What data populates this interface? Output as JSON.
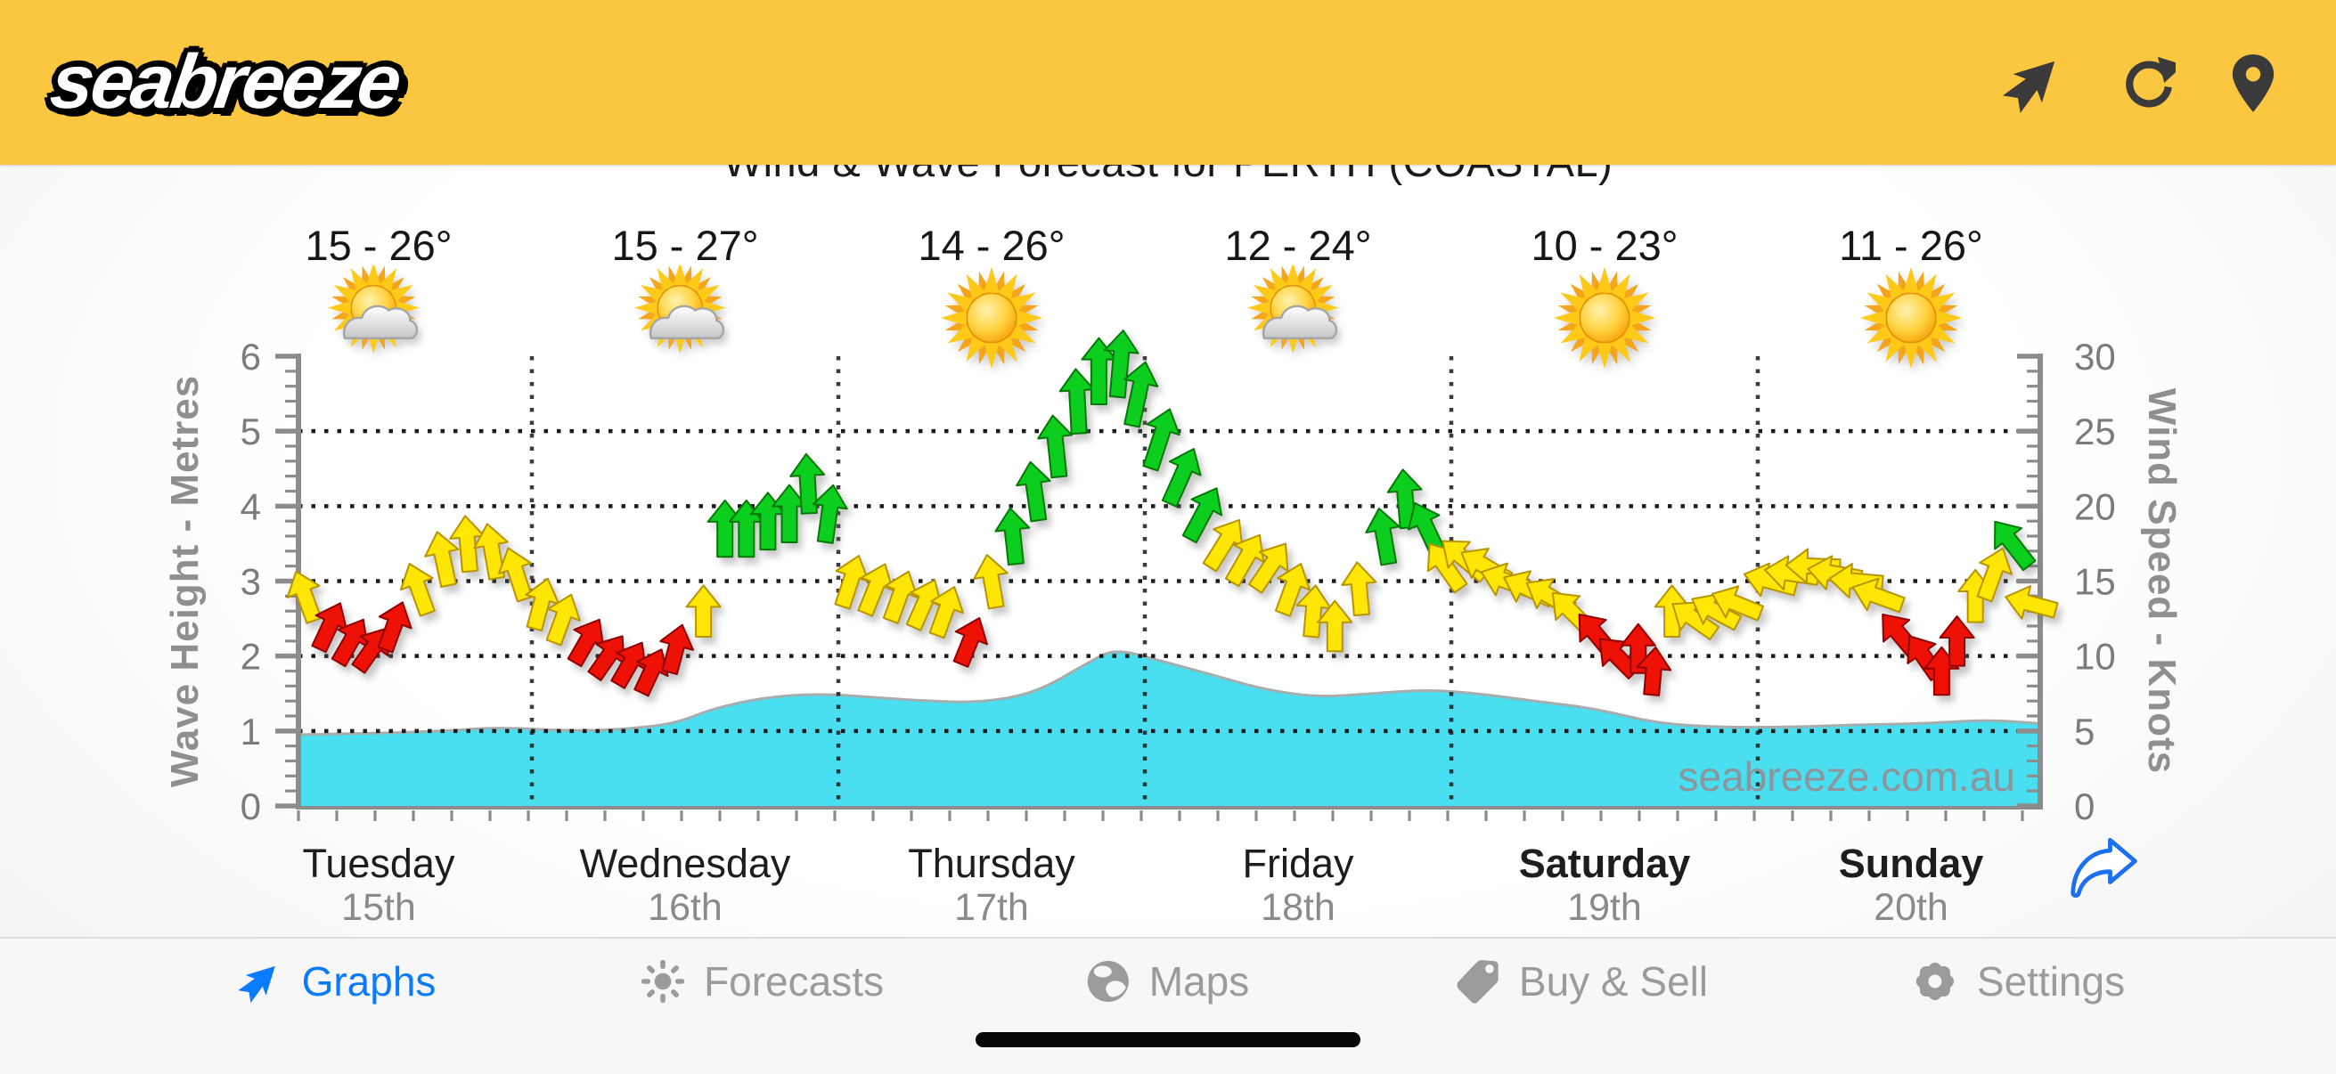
{
  "header": {
    "logo_text": "seabreeze",
    "background": "#FCC740",
    "icons": [
      "wind-direction-icon",
      "refresh-icon",
      "location-pin-icon"
    ]
  },
  "title": "Wind & Wave Forecast for PERTH (COASTAL)",
  "days": [
    {
      "name": "Tuesday",
      "date": "15th",
      "temp": "15 - 26°",
      "weather": "partly-cloudy",
      "bold": false
    },
    {
      "name": "Wednesday",
      "date": "16th",
      "temp": "15 - 27°",
      "weather": "partly-cloudy",
      "bold": false
    },
    {
      "name": "Thursday",
      "date": "17th",
      "temp": "14 - 26°",
      "weather": "sunny",
      "bold": false
    },
    {
      "name": "Friday",
      "date": "18th",
      "temp": "12 - 24°",
      "weather": "partly-cloudy",
      "bold": false
    },
    {
      "name": "Saturday",
      "date": "19th",
      "temp": "10 - 23°",
      "weather": "sunny",
      "bold": true
    },
    {
      "name": "Sunday",
      "date": "20th",
      "temp": "11 - 26°",
      "weather": "sunny",
      "bold": true
    }
  ],
  "chart_data": {
    "type": "wind-wave-forecast",
    "title": "Wind & Wave Forecast for PERTH (COASTAL)",
    "watermark": "seabreeze.com.au",
    "left_axis": {
      "label": "Wave Height - Metres",
      "min": 0,
      "max": 6,
      "major_ticks": [
        0,
        1,
        2,
        3,
        4,
        5,
        6
      ]
    },
    "right_axis": {
      "label": "Wind Speed - Knots",
      "min": 0,
      "max": 30,
      "major_ticks": [
        0,
        5,
        10,
        15,
        20,
        25,
        30
      ]
    },
    "x_categories": [
      "Tuesday 15th",
      "Wednesday 16th",
      "Thursday 17th",
      "Friday 18th",
      "Saturday 19th",
      "Sunday 20th"
    ],
    "grid": "dotted, horizontal every 1 m / 5 kn, vertical at day boundaries",
    "colors": {
      "wave": "#4ADEF1",
      "arrow_red": "#EE1106",
      "arrow_yellow": "#FFE604",
      "arrow_green": "#0BCE1E",
      "grid": "#1B1B1B",
      "axis": "#8C8C8C"
    },
    "wave_series": {
      "name": "Wave Height (metres)",
      "points_day_metres": [
        [
          0.24,
          0.95
        ],
        [
          0.49,
          0.97
        ],
        [
          0.72,
          1.0
        ],
        [
          0.89,
          1.05
        ],
        [
          1.13,
          1.0
        ],
        [
          1.3,
          1.02
        ],
        [
          1.47,
          1.1
        ],
        [
          1.59,
          1.3
        ],
        [
          1.76,
          1.45
        ],
        [
          1.94,
          1.5
        ],
        [
          2.11,
          1.45
        ],
        [
          2.29,
          1.4
        ],
        [
          2.46,
          1.38
        ],
        [
          2.64,
          1.5
        ],
        [
          2.81,
          1.9
        ],
        [
          2.9,
          2.1
        ],
        [
          3.04,
          1.95
        ],
        [
          3.22,
          1.75
        ],
        [
          3.39,
          1.55
        ],
        [
          3.57,
          1.45
        ],
        [
          3.74,
          1.5
        ],
        [
          3.92,
          1.55
        ],
        [
          4.09,
          1.5
        ],
        [
          4.27,
          1.4
        ],
        [
          4.47,
          1.3
        ],
        [
          4.67,
          1.1
        ],
        [
          4.88,
          1.05
        ],
        [
          5.08,
          1.05
        ],
        [
          5.31,
          1.08
        ],
        [
          5.55,
          1.1
        ],
        [
          5.75,
          1.15
        ],
        [
          5.92,
          1.1
        ]
      ]
    },
    "wind_series": {
      "name": "Wind Speed (knots)",
      "point_format": "[day_position, knots, arrow_rotation_deg (0=up, clockwise), color r|y|g]",
      "points": [
        [
          0.26,
          14,
          -20,
          "y"
        ],
        [
          0.34,
          12,
          25,
          "r"
        ],
        [
          0.41,
          11,
          30,
          "r"
        ],
        [
          0.48,
          10.5,
          35,
          "r"
        ],
        [
          0.55,
          12,
          20,
          "r"
        ],
        [
          0.63,
          14.5,
          -20,
          "y"
        ],
        [
          0.71,
          16.5,
          -12,
          "y"
        ],
        [
          0.79,
          17.5,
          -5,
          "y"
        ],
        [
          0.87,
          17,
          -10,
          "y"
        ],
        [
          0.95,
          15.5,
          -18,
          "y"
        ],
        [
          1.03,
          13.5,
          15,
          "y"
        ],
        [
          1.1,
          12.5,
          20,
          "y"
        ],
        [
          1.18,
          11,
          30,
          "r"
        ],
        [
          1.25,
          10,
          35,
          "r"
        ],
        [
          1.32,
          9.5,
          30,
          "r"
        ],
        [
          1.39,
          9,
          25,
          "r"
        ],
        [
          1.47,
          10.5,
          15,
          "r"
        ],
        [
          1.56,
          13,
          0,
          "y"
        ],
        [
          1.63,
          18.5,
          0,
          "g"
        ],
        [
          1.7,
          18.5,
          0,
          "g"
        ],
        [
          1.77,
          19,
          0,
          "g"
        ],
        [
          1.84,
          19.5,
          0,
          "g"
        ],
        [
          1.9,
          21.5,
          -3,
          "g"
        ],
        [
          1.97,
          19.5,
          8,
          "g"
        ],
        [
          2.04,
          15,
          18,
          "y"
        ],
        [
          2.12,
          14.5,
          22,
          "y"
        ],
        [
          2.2,
          14,
          20,
          "y"
        ],
        [
          2.28,
          13.5,
          24,
          "y"
        ],
        [
          2.35,
          13,
          20,
          "y"
        ],
        [
          2.43,
          11,
          22,
          "r"
        ],
        [
          2.5,
          15,
          -10,
          "y"
        ],
        [
          2.57,
          18,
          -6,
          "g"
        ],
        [
          2.64,
          21,
          -8,
          "g"
        ],
        [
          2.71,
          24,
          -6,
          "g"
        ],
        [
          2.78,
          27,
          -3,
          "g"
        ],
        [
          2.85,
          29,
          0,
          "g"
        ],
        [
          2.92,
          29.5,
          5,
          "g"
        ],
        [
          2.98,
          27.5,
          12,
          "g"
        ],
        [
          3.05,
          24.5,
          18,
          "g"
        ],
        [
          3.12,
          22,
          24,
          "g"
        ],
        [
          3.19,
          19.5,
          28,
          "g"
        ],
        [
          3.26,
          17.5,
          32,
          "y"
        ],
        [
          3.33,
          16.5,
          30,
          "y"
        ],
        [
          3.41,
          16,
          34,
          "y"
        ],
        [
          3.48,
          14.5,
          20,
          "y"
        ],
        [
          3.55,
          13,
          5,
          "y"
        ],
        [
          3.62,
          12,
          0,
          "y"
        ],
        [
          3.7,
          14.5,
          -5,
          "y"
        ],
        [
          3.78,
          18,
          -10,
          "g"
        ],
        [
          3.85,
          20.5,
          -5,
          "g"
        ],
        [
          3.92,
          18.5,
          -25,
          "g"
        ],
        [
          3.98,
          16,
          -35,
          "y"
        ],
        [
          4.04,
          16.5,
          -50,
          "y"
        ],
        [
          4.11,
          16,
          -60,
          "y"
        ],
        [
          4.18,
          15,
          -70,
          "y"
        ],
        [
          4.25,
          14.5,
          -65,
          "y"
        ],
        [
          4.32,
          14,
          -60,
          "y"
        ],
        [
          4.39,
          13,
          -45,
          "y"
        ],
        [
          4.47,
          11.5,
          -40,
          "r"
        ],
        [
          4.54,
          10,
          -45,
          "r"
        ],
        [
          4.61,
          10.5,
          0,
          "r"
        ],
        [
          4.66,
          9,
          5,
          "r"
        ],
        [
          4.72,
          13,
          0,
          "y"
        ],
        [
          4.79,
          12.5,
          -55,
          "y"
        ],
        [
          4.86,
          13,
          -62,
          "y"
        ],
        [
          4.93,
          13.5,
          -68,
          "y"
        ],
        [
          5.04,
          15,
          -75,
          "y"
        ],
        [
          5.11,
          15.5,
          -82,
          "y"
        ],
        [
          5.18,
          16,
          -88,
          "y"
        ],
        [
          5.25,
          15.5,
          -80,
          "y"
        ],
        [
          5.32,
          15,
          -85,
          "y"
        ],
        [
          5.39,
          14,
          -70,
          "y"
        ],
        [
          5.46,
          11.5,
          -40,
          "r"
        ],
        [
          5.54,
          10,
          -35,
          "r"
        ],
        [
          5.6,
          9,
          0,
          "r"
        ],
        [
          5.65,
          11,
          0,
          "r"
        ],
        [
          5.71,
          14,
          0,
          "y"
        ],
        [
          5.77,
          15.5,
          20,
          "y"
        ],
        [
          5.83,
          17.5,
          -38,
          "g"
        ],
        [
          5.89,
          13.5,
          -75,
          "y"
        ]
      ]
    }
  },
  "share_button": {
    "icon": "share-forward-icon",
    "color": "#1B6FF0"
  },
  "bottom_nav": {
    "active_color": "#0A7AFF",
    "inactive_color": "#9B9B9B",
    "items": [
      {
        "label": "Graphs",
        "icon": "wind-arrow-icon",
        "active": true
      },
      {
        "label": "Forecasts",
        "icon": "sun-icon",
        "active": false
      },
      {
        "label": "Maps",
        "icon": "globe-icon",
        "active": false
      },
      {
        "label": "Buy & Sell",
        "icon": "tag-icon",
        "active": false
      },
      {
        "label": "Settings",
        "icon": "gear-icon",
        "active": false
      }
    ]
  }
}
